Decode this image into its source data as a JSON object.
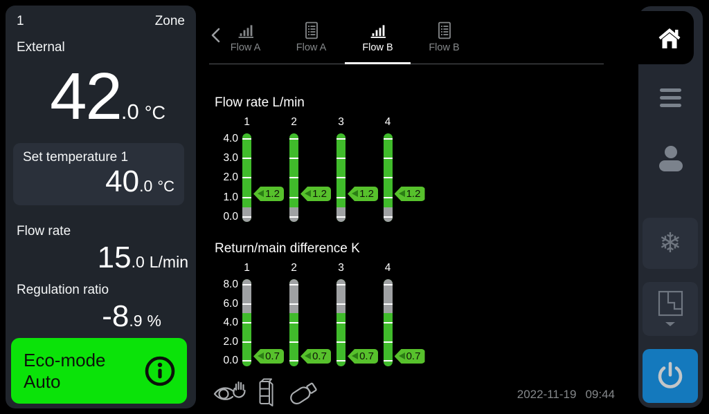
{
  "zone_panel": {
    "zone_number": "1",
    "zone_label": "Zone",
    "external": {
      "label": "External",
      "whole": "42",
      "decimal": ".0",
      "unit": "°C"
    },
    "set_temperature": {
      "label": "Set temperature 1",
      "whole": "40",
      "decimal": ".0",
      "unit": "°C"
    },
    "flow_rate": {
      "label": "Flow rate",
      "whole": "15",
      "decimal": ".0",
      "unit": "L/min"
    },
    "regulation_ratio": {
      "label": "Regulation ratio",
      "whole": "-8",
      "decimal": ".9",
      "unit": "%"
    },
    "eco_button": {
      "label": "Eco-mode Auto",
      "icon": "info-icon",
      "color": "#0be309"
    }
  },
  "tabbar": {
    "back_icon": "chevron-left-icon",
    "tabs": [
      {
        "label": "Flow A",
        "icon": "bar-chart-icon",
        "active": false
      },
      {
        "label": "Flow A",
        "icon": "document-icon",
        "active": false
      },
      {
        "label": "Flow B",
        "icon": "bar-chart-icon",
        "active": true
      },
      {
        "label": "Flow B",
        "icon": "document-icon",
        "active": false
      }
    ]
  },
  "chart_data": [
    {
      "type": "bar",
      "title": "Flow rate L/min",
      "categories": [
        "1",
        "2",
        "3",
        "4"
      ],
      "values": [
        1.2,
        1.2,
        1.2,
        1.2
      ],
      "ylim": [
        0,
        4
      ],
      "yticks": [
        "4.0",
        "3.0",
        "2.0",
        "1.0",
        "0.0"
      ],
      "active_range": [
        0.5,
        4.0
      ],
      "inactive_range": [
        0.0,
        0.5
      ],
      "bar_color": "#40bb2b",
      "inactive_color": "#9fa1a3",
      "badge_color": "#57c12c"
    },
    {
      "type": "bar",
      "title": "Return/main difference K",
      "categories": [
        "1",
        "2",
        "3",
        "4"
      ],
      "values": [
        0.7,
        0.7,
        0.7,
        0.7
      ],
      "ylim": [
        0,
        8
      ],
      "yticks": [
        "8.0",
        "6.0",
        "4.0",
        "2.0",
        "0.0"
      ],
      "active_range": [
        0.0,
        5.0
      ],
      "inactive_range": [
        5.0,
        8.0
      ],
      "bar_color": "#40bb2b",
      "inactive_color": "#9fa1a3",
      "badge_color": "#57c12c"
    }
  ],
  "status_bar": {
    "icons": [
      "eye-hand-icon",
      "controller-icon",
      "usb-icon"
    ],
    "date": "2022-11-19",
    "time": "09:44"
  },
  "sidebar": {
    "items": [
      {
        "icon": "home-icon",
        "active": true
      },
      {
        "icon": "menu-icon"
      },
      {
        "icon": "user-icon"
      },
      {
        "icon": "snowflake-icon"
      },
      {
        "icon": "floorplan-icon"
      },
      {
        "icon": "power-icon"
      }
    ],
    "snowflake_glyph": "❄",
    "power_color": "#1479bd"
  }
}
